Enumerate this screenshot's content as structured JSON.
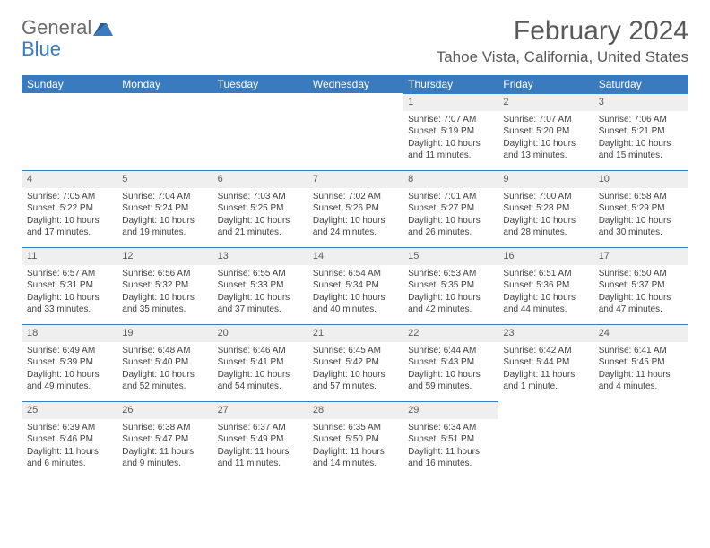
{
  "brand": {
    "name1": "General",
    "name2": "Blue"
  },
  "title": "February 2024",
  "location": "Tahoe Vista, California, United States",
  "colors": {
    "accent": "#3a7bbf",
    "header_text": "#ffffff",
    "daynum_bg": "#efefef",
    "text": "#404040",
    "title_text": "#595959"
  },
  "calendar": {
    "columns": [
      "Sunday",
      "Monday",
      "Tuesday",
      "Wednesday",
      "Thursday",
      "Friday",
      "Saturday"
    ],
    "fontsize_header": 12,
    "fontsize_cell": 10,
    "fontsize_daynum": 11,
    "weeks": [
      [
        null,
        null,
        null,
        null,
        {
          "n": "1",
          "sr": "Sunrise: 7:07 AM",
          "ss": "Sunset: 5:19 PM",
          "dl1": "Daylight: 10 hours",
          "dl2": "and 11 minutes."
        },
        {
          "n": "2",
          "sr": "Sunrise: 7:07 AM",
          "ss": "Sunset: 5:20 PM",
          "dl1": "Daylight: 10 hours",
          "dl2": "and 13 minutes."
        },
        {
          "n": "3",
          "sr": "Sunrise: 7:06 AM",
          "ss": "Sunset: 5:21 PM",
          "dl1": "Daylight: 10 hours",
          "dl2": "and 15 minutes."
        }
      ],
      [
        {
          "n": "4",
          "sr": "Sunrise: 7:05 AM",
          "ss": "Sunset: 5:22 PM",
          "dl1": "Daylight: 10 hours",
          "dl2": "and 17 minutes."
        },
        {
          "n": "5",
          "sr": "Sunrise: 7:04 AM",
          "ss": "Sunset: 5:24 PM",
          "dl1": "Daylight: 10 hours",
          "dl2": "and 19 minutes."
        },
        {
          "n": "6",
          "sr": "Sunrise: 7:03 AM",
          "ss": "Sunset: 5:25 PM",
          "dl1": "Daylight: 10 hours",
          "dl2": "and 21 minutes."
        },
        {
          "n": "7",
          "sr": "Sunrise: 7:02 AM",
          "ss": "Sunset: 5:26 PM",
          "dl1": "Daylight: 10 hours",
          "dl2": "and 24 minutes."
        },
        {
          "n": "8",
          "sr": "Sunrise: 7:01 AM",
          "ss": "Sunset: 5:27 PM",
          "dl1": "Daylight: 10 hours",
          "dl2": "and 26 minutes."
        },
        {
          "n": "9",
          "sr": "Sunrise: 7:00 AM",
          "ss": "Sunset: 5:28 PM",
          "dl1": "Daylight: 10 hours",
          "dl2": "and 28 minutes."
        },
        {
          "n": "10",
          "sr": "Sunrise: 6:58 AM",
          "ss": "Sunset: 5:29 PM",
          "dl1": "Daylight: 10 hours",
          "dl2": "and 30 minutes."
        }
      ],
      [
        {
          "n": "11",
          "sr": "Sunrise: 6:57 AM",
          "ss": "Sunset: 5:31 PM",
          "dl1": "Daylight: 10 hours",
          "dl2": "and 33 minutes."
        },
        {
          "n": "12",
          "sr": "Sunrise: 6:56 AM",
          "ss": "Sunset: 5:32 PM",
          "dl1": "Daylight: 10 hours",
          "dl2": "and 35 minutes."
        },
        {
          "n": "13",
          "sr": "Sunrise: 6:55 AM",
          "ss": "Sunset: 5:33 PM",
          "dl1": "Daylight: 10 hours",
          "dl2": "and 37 minutes."
        },
        {
          "n": "14",
          "sr": "Sunrise: 6:54 AM",
          "ss": "Sunset: 5:34 PM",
          "dl1": "Daylight: 10 hours",
          "dl2": "and 40 minutes."
        },
        {
          "n": "15",
          "sr": "Sunrise: 6:53 AM",
          "ss": "Sunset: 5:35 PM",
          "dl1": "Daylight: 10 hours",
          "dl2": "and 42 minutes."
        },
        {
          "n": "16",
          "sr": "Sunrise: 6:51 AM",
          "ss": "Sunset: 5:36 PM",
          "dl1": "Daylight: 10 hours",
          "dl2": "and 44 minutes."
        },
        {
          "n": "17",
          "sr": "Sunrise: 6:50 AM",
          "ss": "Sunset: 5:37 PM",
          "dl1": "Daylight: 10 hours",
          "dl2": "and 47 minutes."
        }
      ],
      [
        {
          "n": "18",
          "sr": "Sunrise: 6:49 AM",
          "ss": "Sunset: 5:39 PM",
          "dl1": "Daylight: 10 hours",
          "dl2": "and 49 minutes."
        },
        {
          "n": "19",
          "sr": "Sunrise: 6:48 AM",
          "ss": "Sunset: 5:40 PM",
          "dl1": "Daylight: 10 hours",
          "dl2": "and 52 minutes."
        },
        {
          "n": "20",
          "sr": "Sunrise: 6:46 AM",
          "ss": "Sunset: 5:41 PM",
          "dl1": "Daylight: 10 hours",
          "dl2": "and 54 minutes."
        },
        {
          "n": "21",
          "sr": "Sunrise: 6:45 AM",
          "ss": "Sunset: 5:42 PM",
          "dl1": "Daylight: 10 hours",
          "dl2": "and 57 minutes."
        },
        {
          "n": "22",
          "sr": "Sunrise: 6:44 AM",
          "ss": "Sunset: 5:43 PM",
          "dl1": "Daylight: 10 hours",
          "dl2": "and 59 minutes."
        },
        {
          "n": "23",
          "sr": "Sunrise: 6:42 AM",
          "ss": "Sunset: 5:44 PM",
          "dl1": "Daylight: 11 hours",
          "dl2": "and 1 minute."
        },
        {
          "n": "24",
          "sr": "Sunrise: 6:41 AM",
          "ss": "Sunset: 5:45 PM",
          "dl1": "Daylight: 11 hours",
          "dl2": "and 4 minutes."
        }
      ],
      [
        {
          "n": "25",
          "sr": "Sunrise: 6:39 AM",
          "ss": "Sunset: 5:46 PM",
          "dl1": "Daylight: 11 hours",
          "dl2": "and 6 minutes."
        },
        {
          "n": "26",
          "sr": "Sunrise: 6:38 AM",
          "ss": "Sunset: 5:47 PM",
          "dl1": "Daylight: 11 hours",
          "dl2": "and 9 minutes."
        },
        {
          "n": "27",
          "sr": "Sunrise: 6:37 AM",
          "ss": "Sunset: 5:49 PM",
          "dl1": "Daylight: 11 hours",
          "dl2": "and 11 minutes."
        },
        {
          "n": "28",
          "sr": "Sunrise: 6:35 AM",
          "ss": "Sunset: 5:50 PM",
          "dl1": "Daylight: 11 hours",
          "dl2": "and 14 minutes."
        },
        {
          "n": "29",
          "sr": "Sunrise: 6:34 AM",
          "ss": "Sunset: 5:51 PM",
          "dl1": "Daylight: 11 hours",
          "dl2": "and 16 minutes."
        },
        null,
        null
      ]
    ]
  }
}
